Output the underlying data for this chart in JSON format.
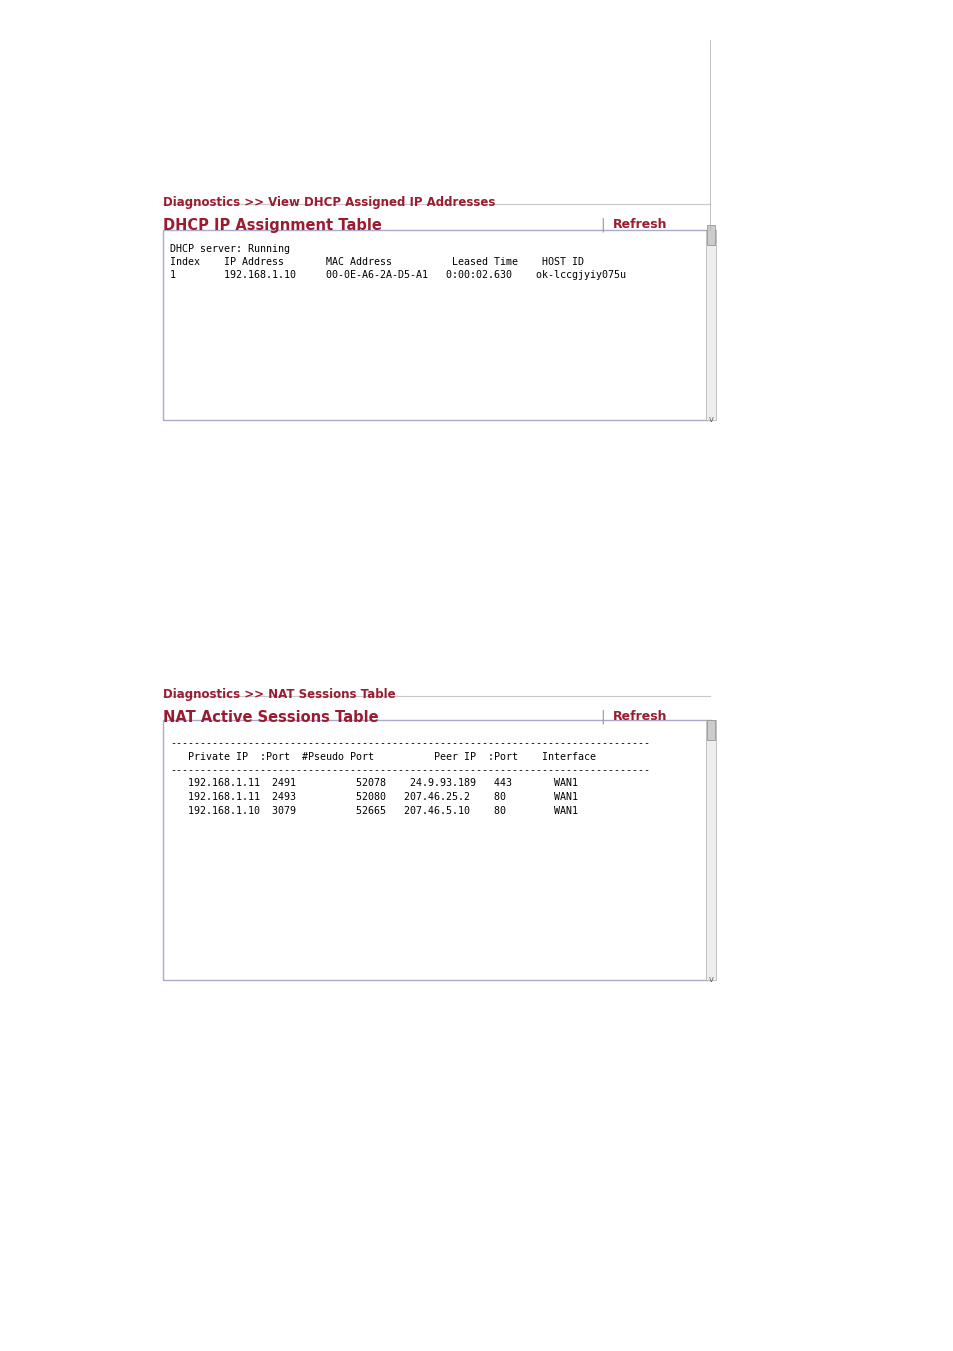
{
  "bg_color": "#ffffff",
  "dark_red": "#8b0000",
  "crimson": "#9b1b30",
  "section1": {
    "breadcrumb": "Diagnostics >> View DHCP Assigned IP Addresses",
    "table_title": "DHCP IP Assignment Table",
    "refresh_label": "Refresh",
    "content_lines": [
      "DHCP server: Running",
      "Index    IP Address       MAC Address          Leased Time    HOST ID",
      "1        192.168.1.10     00-0E-A6-2A-D5-A1   0:00:02.630    ok-lccgjyiy075u"
    ]
  },
  "section2": {
    "breadcrumb": "Diagnostics >> NAT Sessions Table",
    "table_title": "NAT Active Sessions Table",
    "refresh_label": "Refresh",
    "header_dashes": "--------------------------------------------------------------------------------",
    "col_header": "   Private IP  :Port  #Pseudo Port          Peer IP  :Port    Interface",
    "data_rows": [
      "   192.168.1.11  2491          52078    24.9.93.189   443       WAN1",
      "   192.168.1.11  2493          52080   207.46.25.2    80        WAN1",
      "   192.168.1.10  3079          52665   207.46.5.10    80        WAN1"
    ]
  }
}
